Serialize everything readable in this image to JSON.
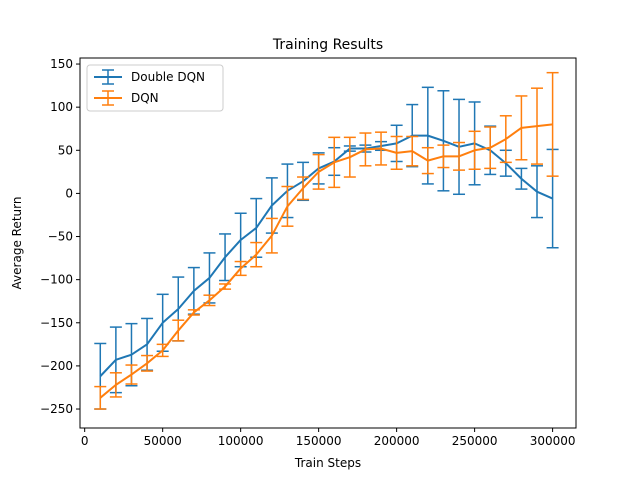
{
  "chart_data": {
    "type": "line",
    "title": "Training Results",
    "xlabel": "Train Steps",
    "ylabel": "Average Return",
    "xlim": [
      -3000,
      315000
    ],
    "ylim": [
      -272,
      157
    ],
    "xticks": [
      0,
      50000,
      100000,
      150000,
      200000,
      250000,
      300000
    ],
    "yticks": [
      -250,
      -200,
      -150,
      -100,
      -50,
      0,
      50,
      100,
      150
    ],
    "grid": false,
    "legend_position": "top-left",
    "x": [
      10000,
      20000,
      30000,
      40000,
      50000,
      60000,
      70000,
      80000,
      90000,
      100000,
      110000,
      120000,
      130000,
      140000,
      150000,
      160000,
      170000,
      180000,
      190000,
      200000,
      210000,
      220000,
      230000,
      240000,
      250000,
      260000,
      270000,
      280000,
      290000,
      300000
    ],
    "series": [
      {
        "name": "Double DQN",
        "color": "#1f77b4",
        "values": [
          -212,
          -193,
          -187,
          -175,
          -150,
          -134,
          -113,
          -98,
          -74,
          -54,
          -40,
          -14,
          3,
          14,
          29,
          37,
          52,
          52,
          55,
          58,
          67,
          67,
          61,
          54,
          58,
          50,
          35,
          17,
          2,
          -6
        ],
        "errors": [
          38,
          38,
          36,
          30,
          33,
          37,
          27,
          29,
          27,
          31,
          34,
          32,
          31,
          22,
          18,
          16,
          3,
          4,
          5,
          21,
          36,
          56,
          58,
          55,
          48,
          28,
          15,
          12,
          30,
          57
        ]
      },
      {
        "name": "DQN",
        "color": "#ff7f0e",
        "values": [
          -237,
          -222,
          -210,
          -197,
          -182,
          -159,
          -138,
          -124,
          -108,
          -87,
          -71,
          -49,
          -15,
          6,
          25,
          36,
          42,
          51,
          52,
          47,
          49,
          38,
          43,
          43,
          50,
          53,
          63,
          76,
          78,
          80
        ],
        "errors": [
          13,
          14,
          11,
          9,
          7,
          12,
          3,
          6,
          3,
          8,
          14,
          20,
          23,
          13,
          20,
          29,
          23,
          19,
          19,
          19,
          17,
          15,
          13,
          16,
          22,
          24,
          27,
          37,
          44,
          60
        ]
      }
    ]
  }
}
